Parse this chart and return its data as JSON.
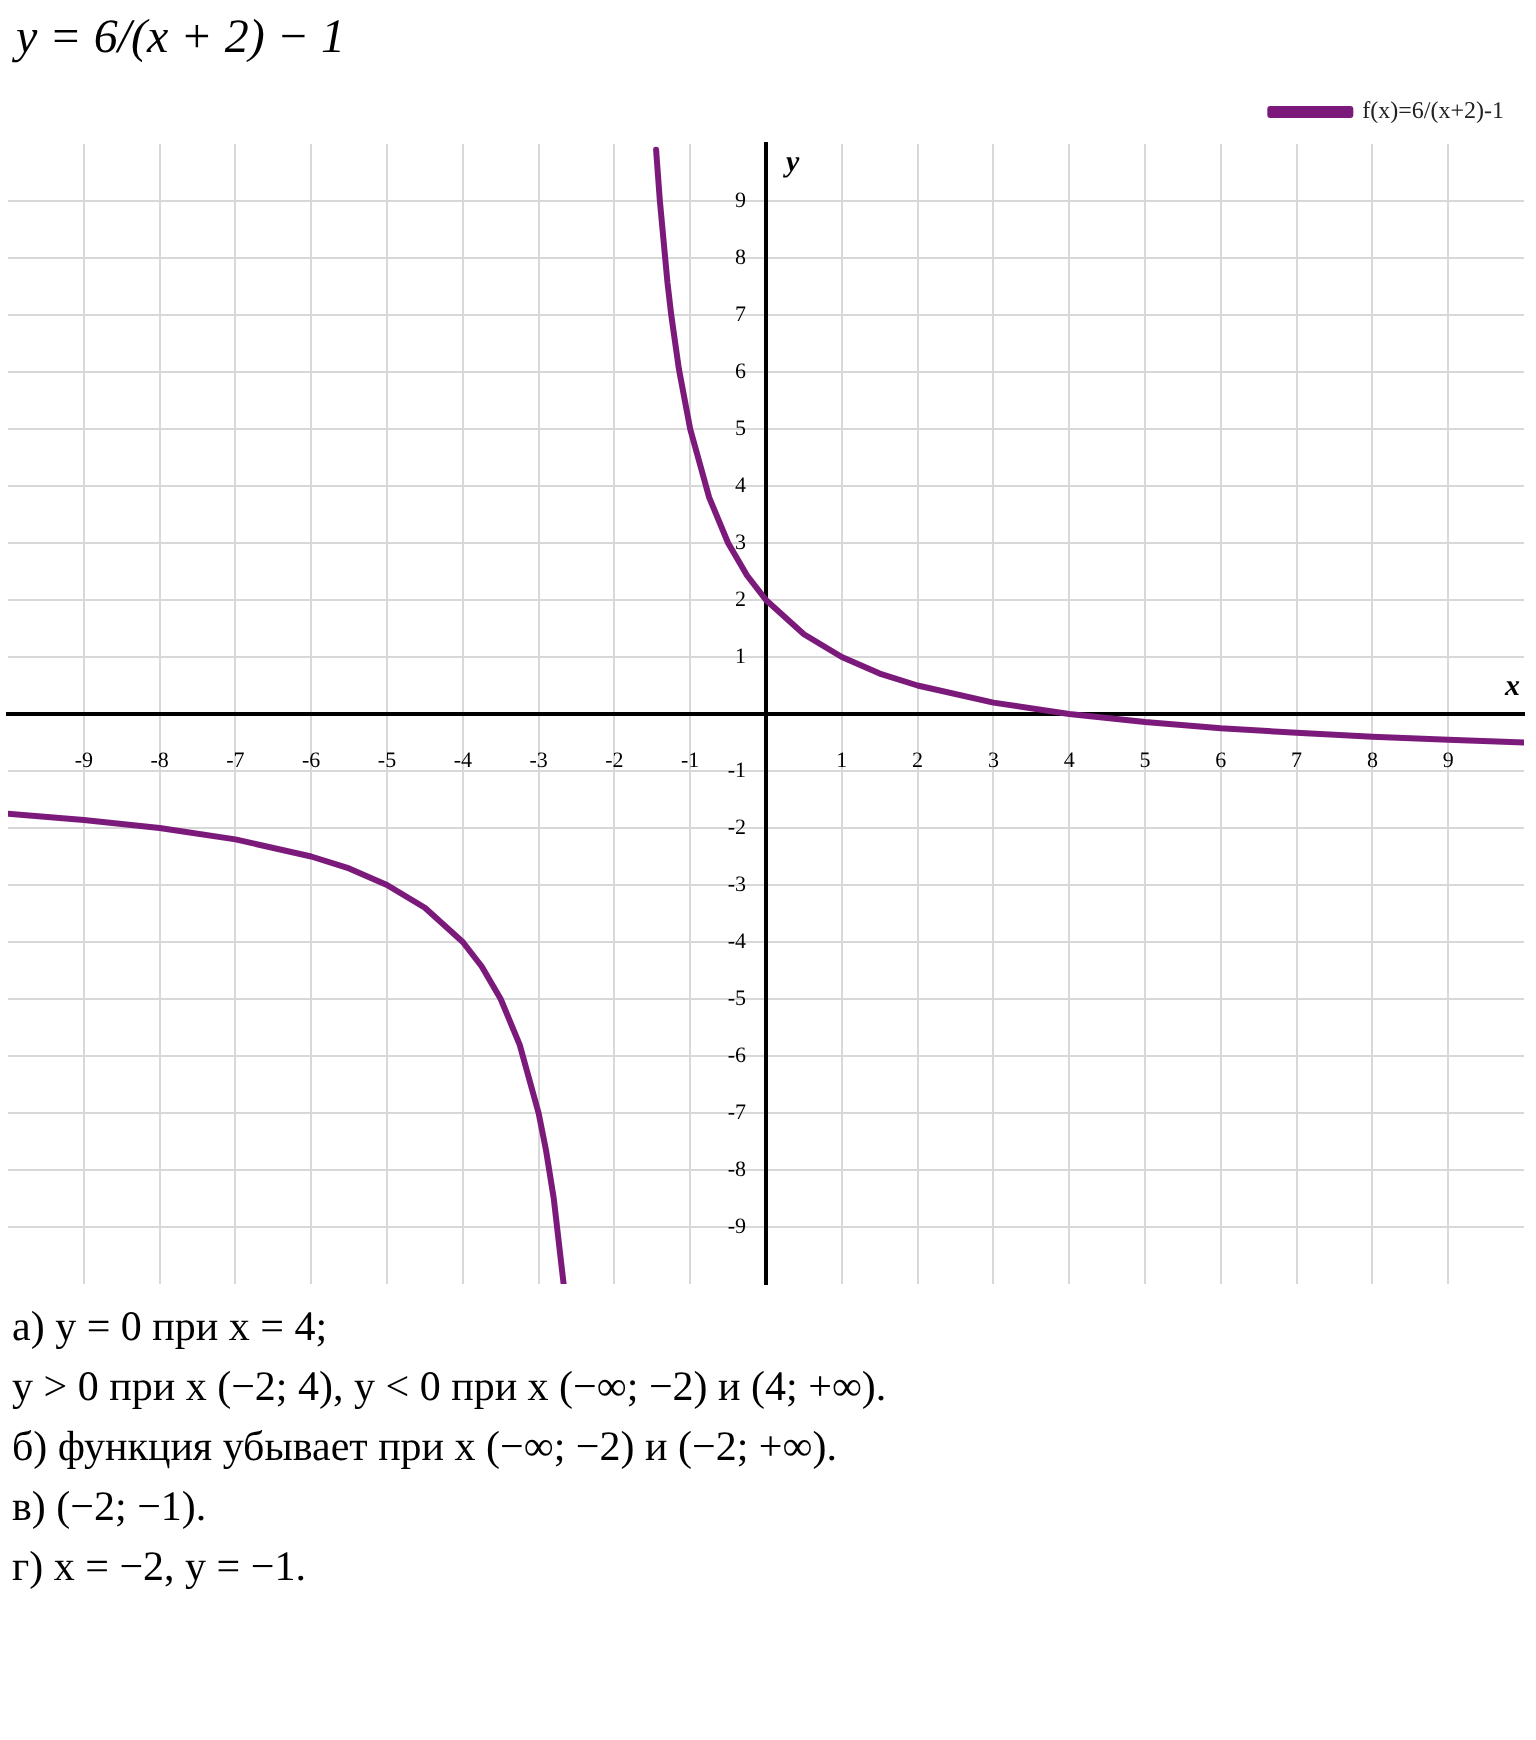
{
  "chart_data": {
    "type": "line",
    "title": "y = 6/(x + 2) − 1",
    "xlabel": "x",
    "ylabel": "y",
    "xlim": [
      -10,
      10
    ],
    "ylim": [
      -10,
      10
    ],
    "xticks": [
      -9,
      -8,
      -7,
      -6,
      -5,
      -4,
      -3,
      -2,
      -1,
      {
        "value": 0,
        "label": null
      },
      1,
      2,
      3,
      4,
      5,
      6,
      7,
      8,
      9
    ],
    "yticks": [
      -9,
      -8,
      -7,
      -6,
      -5,
      -4,
      -3,
      -2,
      -1,
      1,
      2,
      3,
      4,
      5,
      6,
      7,
      8,
      9
    ],
    "grid": true,
    "legend": "top right",
    "marker": "none",
    "line_style": "solid",
    "series": [
      {
        "name": "f(x)=6/(x+2)-1",
        "color": "#7b1a7b",
        "x": [
          -10,
          -9,
          -8,
          -7,
          -6,
          -5.5,
          -5,
          -4.5,
          -4,
          -3.75,
          -3.5,
          -3.25,
          -3,
          -2.9,
          -2.8,
          -2.67,
          -2,
          -1.45,
          -1.4,
          -1.3,
          -1.25,
          -1.15,
          -1,
          -0.75,
          -0.5,
          -0.25,
          0,
          0.5,
          1,
          1.5,
          2,
          3,
          4,
          5,
          6,
          7,
          8,
          9,
          10
        ],
        "values": [
          -1.75,
          -1.86,
          -2,
          -2.2,
          -2.5,
          -2.71,
          -3,
          -3.4,
          -4,
          -4.43,
          -5,
          -5.8,
          -7,
          -7.67,
          -8.5,
          -10,
          null,
          9.9,
          9,
          7.57,
          7,
          6.06,
          5,
          3.8,
          3,
          2.43,
          2,
          1.4,
          1,
          0.71,
          0.5,
          0.2,
          0,
          -0.14,
          -0.25,
          -0.33,
          -0.4,
          -0.45,
          -0.5
        ]
      }
    ],
    "annotations": [
      "а) y = 0 при x = 4;",
      "y > 0 при x (−2; 4),        y < 0 при x (−∞; −2) и (4; +∞).",
      "б) функция убывает при x (−∞; −2) и (−2; +∞).",
      "в) (−2; −1).",
      "г) x = −2,        y = −1."
    ]
  }
}
